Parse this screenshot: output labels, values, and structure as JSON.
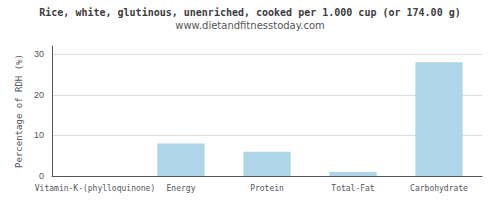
{
  "chart_data": {
    "type": "bar",
    "title": "Rice, white, glutinous, unenriched, cooked per 1.000 cup (or 174.00 g)",
    "subtitle": "www.dietandfitnesstoday.com",
    "categories": [
      "Vitamin-K-(phylloquinone)",
      "Energy",
      "Protein",
      "Total-Fat",
      "Carbohydrate"
    ],
    "values": [
      0.0,
      8.0,
      6.0,
      1.0,
      28.0
    ],
    "color": "#aed6e8",
    "ylabel": "Percentage of RDH (%)",
    "ylim": [
      0,
      32
    ],
    "yticks": [
      0,
      10,
      20,
      30
    ],
    "grid": true
  }
}
